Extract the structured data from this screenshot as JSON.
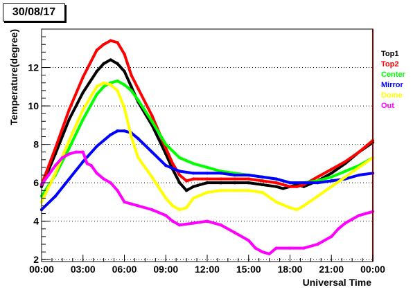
{
  "date_label": "30/08/17",
  "chart_data": {
    "type": "scatter",
    "title": "",
    "xlabel": "Universal Time",
    "ylabel": "Temperature(degree)",
    "xlim": [
      0,
      24
    ],
    "ylim": [
      1.9,
      14.0
    ],
    "x_tick_values": [
      0,
      3,
      6,
      9,
      12,
      15,
      18,
      21,
      24
    ],
    "x_ticks": [
      "00:00",
      "03:00",
      "06:00",
      "09:00",
      "12:00",
      "15:00",
      "18:00",
      "21:00",
      "00:00"
    ],
    "y_ticks": [
      2,
      4,
      6,
      8,
      10,
      12
    ],
    "grid": "horizontal dotted",
    "legend_position": "right",
    "series": [
      {
        "name": "Top1",
        "color": "#000000",
        "x": [
          0,
          1,
          2,
          3,
          4,
          4.5,
          5,
          5.5,
          6,
          6.5,
          7,
          8,
          9,
          9.5,
          10,
          10.5,
          11,
          12,
          13,
          14,
          15,
          16,
          17,
          17.5,
          18,
          18.5,
          19,
          20,
          21,
          22,
          23,
          24
        ],
        "y": [
          5.8,
          7.5,
          9.3,
          10.7,
          11.8,
          12.2,
          12.4,
          12.2,
          11.8,
          11.0,
          10.2,
          9.0,
          7.5,
          6.7,
          6.0,
          5.6,
          5.8,
          6.0,
          6.0,
          6.0,
          6.0,
          5.9,
          5.8,
          5.7,
          5.8,
          5.9,
          5.8,
          6.1,
          6.5,
          7.0,
          7.6,
          8.1
        ]
      },
      {
        "name": "Top2",
        "color": "#ff0000",
        "x": [
          0,
          1,
          2,
          3,
          4,
          4.5,
          5,
          5.5,
          6,
          6.5,
          7,
          8,
          9,
          9.5,
          10,
          10.5,
          11,
          12,
          13,
          14,
          15,
          16,
          17,
          17.5,
          18,
          18.5,
          19,
          20,
          21,
          22,
          23,
          24
        ],
        "y": [
          5.9,
          7.8,
          9.8,
          11.5,
          12.9,
          13.2,
          13.4,
          13.3,
          12.7,
          11.6,
          10.9,
          9.5,
          7.8,
          7.0,
          6.4,
          6.1,
          6.2,
          6.2,
          6.2,
          6.2,
          6.2,
          6.1,
          6.0,
          5.9,
          5.8,
          5.8,
          5.9,
          6.3,
          6.7,
          7.1,
          7.6,
          8.2
        ]
      },
      {
        "name": "Center",
        "color": "#00ff00",
        "x": [
          0,
          1,
          2,
          3,
          4,
          4.5,
          5,
          5.5,
          6,
          6.5,
          7,
          8,
          9,
          10,
          11,
          12,
          13,
          14,
          15,
          16,
          17,
          18,
          19,
          20,
          21,
          22,
          23,
          24
        ],
        "y": [
          5.3,
          6.4,
          7.8,
          9.3,
          10.6,
          11.0,
          11.2,
          11.3,
          11.1,
          10.8,
          10.3,
          9.2,
          8.0,
          7.3,
          7.0,
          6.8,
          6.6,
          6.5,
          6.4,
          6.3,
          6.2,
          6.0,
          6.0,
          6.1,
          6.3,
          6.6,
          6.9,
          7.3
        ]
      },
      {
        "name": "Mirror",
        "color": "#0000ff",
        "x": [
          0,
          1,
          2,
          3,
          4,
          5,
          5.5,
          6,
          6.5,
          7,
          8,
          9,
          10,
          11,
          12,
          13,
          14,
          15,
          16,
          17,
          18,
          19,
          20,
          21,
          22,
          23,
          24
        ],
        "y": [
          4.6,
          5.3,
          6.2,
          7.1,
          7.9,
          8.5,
          8.7,
          8.7,
          8.6,
          8.3,
          7.6,
          6.9,
          6.6,
          6.5,
          6.5,
          6.5,
          6.4,
          6.4,
          6.3,
          6.2,
          6.0,
          6.0,
          6.0,
          6.1,
          6.2,
          6.4,
          6.5
        ]
      },
      {
        "name": "Dome",
        "color": "#ffff00",
        "x": [
          0,
          1,
          2,
          3,
          4,
          4.5,
          5,
          5.5,
          6,
          6.5,
          7,
          8,
          9,
          9.5,
          10,
          10.5,
          11,
          12,
          13,
          14,
          15,
          16,
          17,
          18,
          18.5,
          19,
          20,
          21,
          22,
          23,
          24
        ],
        "y": [
          5.0,
          6.5,
          8.2,
          9.8,
          11.0,
          11.2,
          11.1,
          10.8,
          9.9,
          8.4,
          7.3,
          6.3,
          5.2,
          4.8,
          4.6,
          4.7,
          5.2,
          5.5,
          5.6,
          5.6,
          5.6,
          5.5,
          5.0,
          4.7,
          4.6,
          4.8,
          5.3,
          5.8,
          6.3,
          6.8,
          7.3
        ]
      },
      {
        "name": "Out",
        "color": "#ff00ff",
        "x": [
          0,
          0.5,
          1,
          1.5,
          2,
          2.5,
          3,
          3.3,
          3.6,
          4,
          4.5,
          5,
          5.5,
          6,
          6.5,
          7,
          8,
          9,
          9.5,
          10,
          11,
          12,
          13,
          14,
          15,
          15.5,
          16,
          16.5,
          17,
          18,
          19,
          20,
          21,
          21.5,
          22,
          22.5,
          23,
          23.5,
          24
        ],
        "y": [
          5.9,
          6.4,
          6.9,
          7.3,
          7.5,
          7.6,
          7.6,
          7.0,
          6.9,
          6.5,
          6.2,
          6.0,
          5.6,
          5.0,
          4.9,
          4.8,
          4.6,
          4.3,
          4.0,
          3.8,
          3.9,
          4.0,
          3.8,
          3.4,
          3.0,
          2.6,
          2.4,
          2.3,
          2.6,
          2.6,
          2.6,
          2.8,
          3.2,
          3.6,
          3.9,
          4.1,
          4.3,
          4.4,
          4.5
        ]
      }
    ]
  }
}
